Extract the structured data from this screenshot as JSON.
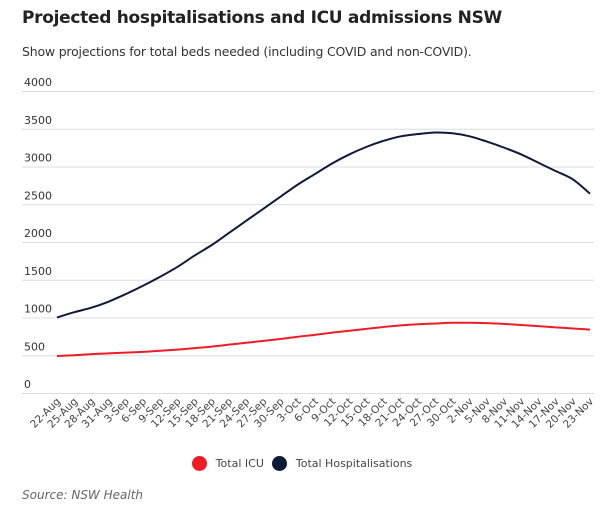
{
  "chart_data": {
    "type": "line",
    "title": "Projected hospitalisations and ICU admissions NSW",
    "subtitle": "Show projections for total beds needed (including COVID and non-COVID).",
    "xlabel": "",
    "ylabel": "",
    "ylim": [
      0,
      4000
    ],
    "yticks": [
      "0",
      "500",
      "1000",
      "1500",
      "2000",
      "2500",
      "3000",
      "3500",
      "4000"
    ],
    "ytick_values": [
      0,
      500,
      1000,
      1500,
      2000,
      2500,
      3000,
      3500,
      4000
    ],
    "grid": true,
    "legend_position": "bottom-center",
    "categories": [
      "22-Aug",
      "25-Aug",
      "28-Aug",
      "31-Aug",
      "3-Sep",
      "6-Sep",
      "9-Sep",
      "12-Sep",
      "15-Sep",
      "18-Sep",
      "21-Sep",
      "24-Sep",
      "27-Sep",
      "30-Sep",
      "3-Oct",
      "6-Oct",
      "9-Oct",
      "12-Oct",
      "15-Oct",
      "18-Oct",
      "21-Oct",
      "24-Oct",
      "27-Oct",
      "30-Oct",
      "2-Nov",
      "5-Nov",
      "8-Nov",
      "11-Nov",
      "14-Nov",
      "17-Nov",
      "20-Nov",
      "23-Nov"
    ],
    "series": [
      {
        "name": "Total ICU",
        "color": "#ee1c25",
        "values": [
          490,
          500,
          515,
          525,
          535,
          545,
          560,
          575,
          595,
          615,
          640,
          665,
          690,
          715,
          745,
          770,
          800,
          825,
          850,
          875,
          895,
          910,
          920,
          930,
          930,
          925,
          915,
          900,
          885,
          870,
          855,
          840
        ]
      },
      {
        "name": "Total Hospitalisations",
        "color": "#0d1a3a",
        "values": [
          1000,
          1070,
          1130,
          1210,
          1310,
          1420,
          1540,
          1670,
          1820,
          1960,
          2120,
          2280,
          2440,
          2600,
          2760,
          2900,
          3040,
          3160,
          3260,
          3340,
          3400,
          3430,
          3450,
          3440,
          3400,
          3330,
          3250,
          3160,
          3050,
          2940,
          2830,
          2640
        ]
      }
    ],
    "source": "Source: NSW Health"
  }
}
